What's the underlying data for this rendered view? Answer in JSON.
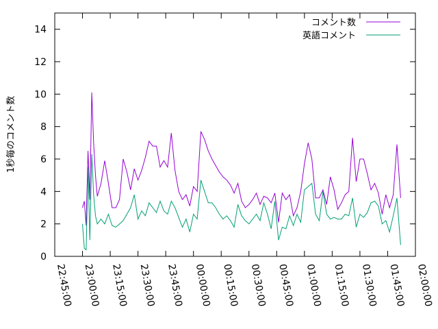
{
  "chart_data": {
    "type": "line",
    "title": "",
    "xlabel": "",
    "ylabel": "1秒毎のコメント数",
    "xlim": [
      "22:45:00",
      "02:00:00"
    ],
    "ylim": [
      0,
      15
    ],
    "grid": false,
    "legend_position": "top-right",
    "x_ticks": [
      "22:45:00",
      "23:00:00",
      "23:15:00",
      "23:30:00",
      "23:45:00",
      "00:00:00",
      "00:15:00",
      "00:30:00",
      "00:45:00",
      "01:00:00",
      "01:15:00",
      "01:30:00",
      "01:45:00",
      "02:00:00"
    ],
    "y_ticks": [
      0,
      2,
      4,
      6,
      8,
      10,
      12,
      14
    ],
    "series": [
      {
        "name": "コメント数",
        "color": "#9400d3",
        "x": [
          "23:00:00",
          "23:01:00",
          "23:02:00",
          "23:03:00",
          "23:04:00",
          "23:05:00",
          "23:06:00",
          "23:07:00",
          "23:08:00",
          "23:10:00",
          "23:12:00",
          "23:14:00",
          "23:16:00",
          "23:18:00",
          "23:20:00",
          "23:22:00",
          "23:24:00",
          "23:26:00",
          "23:28:00",
          "23:30:00",
          "23:32:00",
          "23:34:00",
          "23:36:00",
          "23:38:00",
          "23:40:00",
          "23:42:00",
          "23:44:00",
          "23:46:00",
          "23:48:00",
          "23:50:00",
          "23:52:00",
          "23:54:00",
          "23:56:00",
          "23:58:00",
          "00:00:00",
          "00:02:00",
          "00:04:00",
          "00:06:00",
          "00:08:00",
          "00:10:00",
          "00:12:00",
          "00:14:00",
          "00:16:00",
          "00:18:00",
          "00:20:00",
          "00:22:00",
          "00:24:00",
          "00:26:00",
          "00:28:00",
          "00:30:00",
          "00:32:00",
          "00:34:00",
          "00:36:00",
          "00:38:00",
          "00:40:00",
          "00:42:00",
          "00:44:00",
          "00:46:00",
          "00:48:00",
          "00:50:00",
          "00:52:00",
          "00:54:00",
          "00:56:00",
          "00:58:00",
          "01:00:00",
          "01:02:00",
          "01:04:00",
          "01:06:00",
          "01:08:00",
          "01:10:00",
          "01:12:00",
          "01:14:00",
          "01:16:00",
          "01:18:00",
          "01:20:00",
          "01:22:00",
          "01:24:00",
          "01:26:00",
          "01:28:00",
          "01:30:00",
          "01:32:00",
          "01:34:00",
          "01:36:00",
          "01:38:00",
          "01:40:00",
          "01:42:00",
          "01:44:00",
          "01:46:00",
          "01:48:00",
          "01:50:00",
          "01:52:00"
        ],
        "y": [
          3.0,
          3.4,
          1.9,
          6.5,
          3.5,
          10.1,
          7.0,
          5.0,
          3.7,
          4.5,
          5.9,
          4.5,
          3.0,
          3.0,
          3.5,
          6.0,
          5.2,
          4.1,
          5.4,
          4.7,
          5.3,
          6.1,
          7.1,
          6.8,
          6.8,
          5.5,
          5.9,
          5.5,
          7.6,
          5.3,
          4.0,
          3.5,
          3.8,
          3.1,
          4.3,
          4.0,
          7.7,
          7.2,
          6.5,
          6.0,
          5.6,
          5.2,
          4.9,
          4.7,
          4.4,
          3.9,
          4.5,
          3.4,
          3.0,
          3.2,
          3.5,
          3.9,
          3.2,
          3.7,
          3.6,
          3.3,
          3.9,
          2.1,
          3.9,
          3.5,
          3.8,
          2.5,
          3.0,
          4.0,
          5.7,
          7.0,
          6.0,
          3.6,
          3.6,
          4.1,
          3.2,
          4.9,
          4.1,
          2.9,
          3.3,
          3.8,
          4.0,
          7.3,
          4.6,
          6.0,
          6.0,
          5.1,
          4.1,
          4.5,
          3.9,
          2.6,
          3.8,
          3.0,
          3.8,
          6.9,
          3.6
        ]
      },
      {
        "name": "英語コメント",
        "color": "#009e73",
        "x": [
          "23:00:00",
          "23:01:00",
          "23:02:00",
          "23:03:00",
          "23:04:00",
          "23:05:00",
          "23:06:00",
          "23:07:00",
          "23:08:00",
          "23:10:00",
          "23:12:00",
          "23:14:00",
          "23:16:00",
          "23:18:00",
          "23:20:00",
          "23:22:00",
          "23:24:00",
          "23:26:00",
          "23:28:00",
          "23:30:00",
          "23:32:00",
          "23:34:00",
          "23:36:00",
          "23:38:00",
          "23:40:00",
          "23:42:00",
          "23:44:00",
          "23:46:00",
          "23:48:00",
          "23:50:00",
          "23:52:00",
          "23:54:00",
          "23:56:00",
          "23:58:00",
          "00:00:00",
          "00:02:00",
          "00:04:00",
          "00:06:00",
          "00:08:00",
          "00:10:00",
          "00:12:00",
          "00:14:00",
          "00:16:00",
          "00:18:00",
          "00:20:00",
          "00:22:00",
          "00:24:00",
          "00:26:00",
          "00:28:00",
          "00:30:00",
          "00:32:00",
          "00:34:00",
          "00:36:00",
          "00:38:00",
          "00:40:00",
          "00:42:00",
          "00:44:00",
          "00:46:00",
          "00:48:00",
          "00:50:00",
          "00:52:00",
          "00:54:00",
          "00:56:00",
          "00:58:00",
          "01:00:00",
          "01:02:00",
          "01:04:00",
          "01:06:00",
          "01:08:00",
          "01:10:00",
          "01:12:00",
          "01:14:00",
          "01:16:00",
          "01:18:00",
          "01:20:00",
          "01:22:00",
          "01:24:00",
          "01:26:00",
          "01:28:00",
          "01:30:00",
          "01:32:00",
          "01:34:00",
          "01:36:00",
          "01:38:00",
          "01:40:00",
          "01:42:00",
          "01:44:00",
          "01:46:00",
          "01:48:00",
          "01:50:00",
          "01:52:00"
        ],
        "y": [
          2.0,
          0.5,
          0.4,
          5.5,
          1.0,
          6.3,
          3.8,
          2.5,
          2.0,
          2.3,
          2.0,
          2.6,
          1.9,
          1.8,
          2.0,
          2.2,
          2.6,
          3.0,
          3.8,
          2.3,
          2.8,
          2.5,
          3.3,
          3.0,
          2.7,
          3.4,
          2.8,
          2.6,
          3.4,
          3.0,
          2.4,
          1.8,
          2.3,
          1.5,
          2.6,
          2.3,
          4.7,
          4.0,
          3.3,
          3.3,
          3.0,
          2.6,
          2.3,
          2.5,
          2.2,
          1.8,
          3.2,
          2.5,
          2.2,
          2.0,
          2.3,
          2.6,
          2.2,
          3.3,
          2.6,
          1.7,
          3.4,
          1.0,
          1.8,
          1.7,
          2.5,
          1.9,
          2.6,
          2.1,
          4.1,
          4.3,
          4.5,
          2.6,
          2.2,
          4.0,
          2.6,
          2.3,
          2.4,
          2.3,
          2.3,
          2.6,
          2.5,
          3.6,
          1.8,
          2.6,
          2.4,
          2.7,
          3.3,
          3.4,
          3.1,
          2.0,
          2.2,
          1.5,
          2.5,
          3.6,
          0.7
        ]
      }
    ]
  }
}
